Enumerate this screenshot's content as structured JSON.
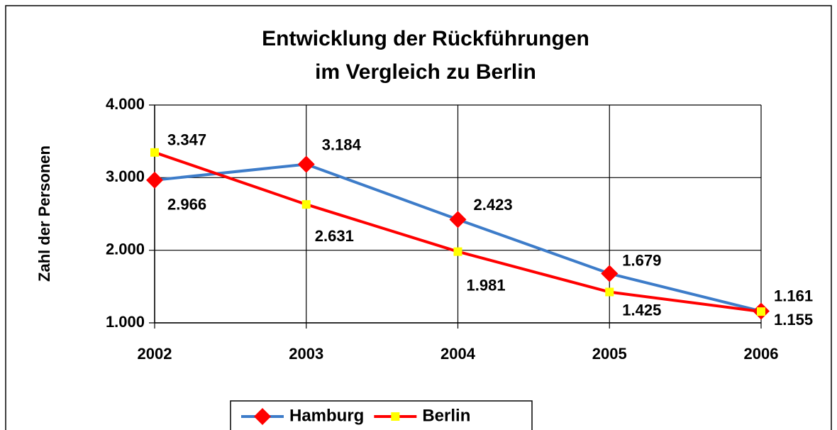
{
  "chart_data": {
    "type": "line",
    "title": "Entwicklung der Rückführungen",
    "subtitle": "im Vergleich zu Berlin",
    "y_label": "Zahl der Personen",
    "categories": [
      "2002",
      "2003",
      "2004",
      "2005",
      "2006"
    ],
    "series": [
      {
        "name": "Hamburg",
        "color": "#3d7cc9",
        "marker_color": "#ff0000",
        "values": [
          2966,
          3184,
          2423,
          1679,
          1161
        ],
        "value_labels": [
          "2.966",
          "3.184",
          "2.423",
          "1.679",
          "1.161"
        ]
      },
      {
        "name": "Berlin",
        "color": "#ff0000",
        "marker_color": "#ffff00",
        "values": [
          3347,
          2631,
          1981,
          1425,
          1155
        ],
        "value_labels": [
          "3.347",
          "2.631",
          "1.981",
          "1.425",
          "1.155"
        ]
      }
    ],
    "ylim": [
      1000,
      4000
    ],
    "yticks": [
      {
        "value": 1000,
        "label": "1.000"
      },
      {
        "value": 2000,
        "label": "2.000"
      },
      {
        "value": 3000,
        "label": "3.000"
      },
      {
        "value": 4000,
        "label": "4.000"
      }
    ],
    "grid": true,
    "legend": "bottom"
  }
}
